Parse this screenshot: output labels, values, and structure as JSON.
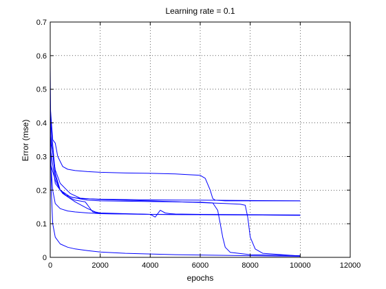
{
  "chart_data": {
    "type": "line",
    "title": "Learning rate = 0.1",
    "xlabel": "epochs",
    "ylabel": "Error (mse)",
    "xlim": [
      0,
      12000
    ],
    "ylim": [
      0,
      0.7
    ],
    "xticks": [
      0,
      2000,
      4000,
      6000,
      8000,
      10000,
      12000
    ],
    "yticks": [
      0,
      0.1,
      0.2,
      0.3,
      0.4,
      0.5,
      0.6,
      0.7
    ],
    "xtick_labels": [
      "0",
      "2000",
      "4000",
      "6000",
      "8000",
      "10000",
      "12000"
    ],
    "ytick_labels": [
      "0",
      "0.1",
      "0.2",
      "0.3",
      "0.4",
      "0.5",
      "0.6",
      "0.7"
    ],
    "grid": true,
    "grid_style": "dotted",
    "line_color": "#0000ff",
    "series": [
      {
        "x": [
          0,
          40,
          100,
          200,
          400,
          700,
          1000,
          1500,
          2000,
          3000,
          4000,
          5000,
          6000,
          7000,
          8000,
          10000
        ],
        "y": [
          0.57,
          0.2,
          0.1,
          0.06,
          0.04,
          0.03,
          0.025,
          0.02,
          0.016,
          0.012,
          0.01,
          0.008,
          0.007,
          0.006,
          0.005,
          0.003
        ]
      },
      {
        "x": [
          0,
          100,
          200,
          300,
          500,
          700,
          1000,
          1500,
          2000,
          3000,
          4000,
          5000,
          6000,
          6200,
          6400,
          6500,
          6600,
          6800,
          7000,
          8000,
          10000
        ],
        "y": [
          0.45,
          0.35,
          0.34,
          0.3,
          0.27,
          0.262,
          0.258,
          0.255,
          0.253,
          0.251,
          0.25,
          0.248,
          0.244,
          0.235,
          0.2,
          0.175,
          0.17,
          0.169,
          0.168,
          0.168,
          0.168
        ]
      },
      {
        "x": [
          0,
          200,
          400,
          600,
          900,
          1200,
          2000,
          4000,
          6000,
          8000,
          10000
        ],
        "y": [
          0.42,
          0.25,
          0.2,
          0.185,
          0.178,
          0.175,
          0.173,
          0.171,
          0.17,
          0.169,
          0.168
        ]
      },
      {
        "x": [
          0,
          200,
          400,
          800,
          1200,
          1500,
          2000,
          4000,
          6000,
          6500,
          6700,
          6800,
          6900,
          7000,
          7200,
          8000,
          10000
        ],
        "y": [
          0.38,
          0.24,
          0.2,
          0.18,
          0.174,
          0.17,
          0.168,
          0.166,
          0.164,
          0.162,
          0.14,
          0.1,
          0.06,
          0.03,
          0.015,
          0.008,
          0.005
        ]
      },
      {
        "x": [
          0,
          200,
          400,
          800,
          1200,
          2000,
          4000,
          6000,
          7000,
          7600,
          7800,
          7900,
          8000,
          8200,
          8500,
          10000
        ],
        "y": [
          0.36,
          0.26,
          0.22,
          0.19,
          0.176,
          0.172,
          0.168,
          0.163,
          0.16,
          0.158,
          0.155,
          0.12,
          0.06,
          0.025,
          0.012,
          0.004
        ]
      },
      {
        "x": [
          0,
          200,
          500,
          1000,
          1500,
          1800,
          2000,
          3000,
          4000,
          4200,
          4400,
          4600,
          4800,
          5000,
          6000,
          8000,
          10000
        ],
        "y": [
          0.33,
          0.22,
          0.19,
          0.165,
          0.145,
          0.135,
          0.132,
          0.13,
          0.128,
          0.12,
          0.14,
          0.132,
          0.13,
          0.129,
          0.128,
          0.127,
          0.126
        ]
      },
      {
        "x": [
          0,
          100,
          200,
          400,
          700,
          1000,
          1500,
          2000,
          3000,
          4000,
          6000,
          8000,
          10000
        ],
        "y": [
          0.3,
          0.2,
          0.16,
          0.145,
          0.138,
          0.135,
          0.132,
          0.13,
          0.129,
          0.128,
          0.127,
          0.126,
          0.125
        ]
      },
      {
        "x": [
          0,
          200,
          400,
          700,
          1000,
          1400,
          1700,
          2000,
          3000,
          4000,
          6000,
          8000,
          10000
        ],
        "y": [
          0.28,
          0.23,
          0.2,
          0.18,
          0.17,
          0.165,
          0.135,
          0.13,
          0.129,
          0.128,
          0.127,
          0.126,
          0.125
        ]
      }
    ]
  }
}
